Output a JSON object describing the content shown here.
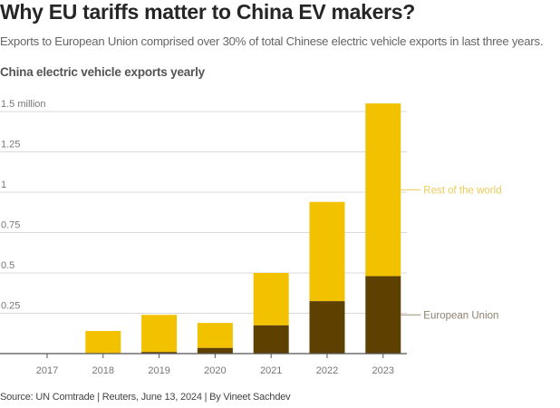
{
  "header": {
    "title": "Why EU tariffs matter to China EV makers?",
    "subtitle": "Exports to European Union comprised over 30% of total Chinese electric vehicle exports in last three years."
  },
  "footer": {
    "source": "Source: UN Comtrade | Reuters, June 13, 2024 | By Vineet Sachdev"
  },
  "colors": {
    "rest_of_world": "#F2C200",
    "european_union": "#5E4100",
    "rest_of_world_label": "#EBCB5A",
    "european_union_label": "#8C8270"
  },
  "chart_data": {
    "type": "bar",
    "stacked": true,
    "title": "China electric vehicle exports yearly",
    "xlabel": "",
    "ylabel": "",
    "unit": "million",
    "categories": [
      "2017",
      "2018",
      "2019",
      "2020",
      "2021",
      "2022",
      "2023"
    ],
    "series": [
      {
        "name": "European Union",
        "values": [
          0,
          0,
          0.01,
          0.035,
          0.175,
          0.325,
          0.48
        ]
      },
      {
        "name": "Rest of the world",
        "values": [
          0,
          0.14,
          0.23,
          0.155,
          0.325,
          0.615,
          1.07
        ]
      }
    ],
    "totals": [
      0,
      0.14,
      0.24,
      0.19,
      0.5,
      0.94,
      1.55
    ],
    "ylim": [
      0,
      1.5
    ],
    "yticks": [
      0,
      0.25,
      0.5,
      0.75,
      1,
      1.25,
      1.5
    ],
    "ytick_labels": [
      "",
      "0.25",
      "0.5",
      "0.75",
      "1",
      "1.25",
      "1.5 million"
    ],
    "grid": true,
    "legend": "right, inline labels next to 2023 bar"
  }
}
